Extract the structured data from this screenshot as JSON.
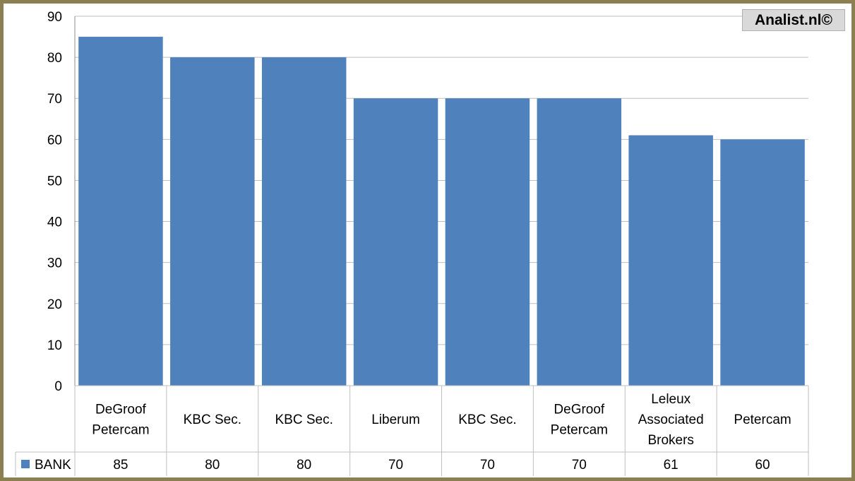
{
  "chart_data": {
    "type": "bar",
    "categories": [
      [
        "DeGroof",
        "Petercam"
      ],
      [
        "KBC Sec."
      ],
      [
        "KBC Sec."
      ],
      [
        "Liberum"
      ],
      [
        "KBC Sec."
      ],
      [
        "DeGroof",
        "Petercam"
      ],
      [
        "Leleux",
        "Associated",
        "Brokers"
      ],
      [
        "Petercam"
      ]
    ],
    "series": [
      {
        "name": "BANK",
        "values": [
          85,
          80,
          80,
          70,
          70,
          70,
          61,
          60
        ],
        "color": "#4f81bd"
      }
    ],
    "ylim": [
      0,
      90
    ],
    "yticks": [
      0,
      10,
      20,
      30,
      40,
      50,
      60,
      70,
      80,
      90
    ],
    "grid": true,
    "legend": "data-table-left",
    "data_table": true,
    "colors": {
      "bar": "#4f81bd",
      "frame": "#8c7f52",
      "grid": "#bfbfbf"
    }
  },
  "watermark": {
    "text": "Analist.nl©"
  }
}
